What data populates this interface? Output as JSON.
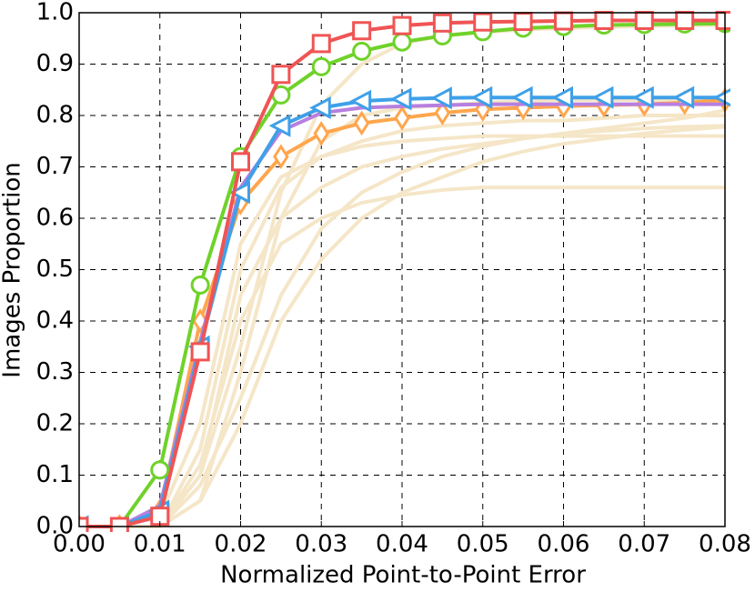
{
  "chart_data": {
    "type": "line",
    "xlabel": "Normalized Point-to-Point Error",
    "ylabel": "Images Proportion",
    "x": [
      0,
      0.005,
      0.01,
      0.015,
      0.02,
      0.025,
      0.03,
      0.035,
      0.04,
      0.045,
      0.05,
      0.055,
      0.06,
      0.065,
      0.07,
      0.075,
      0.08
    ],
    "xlim": [
      0,
      0.08
    ],
    "ylim": [
      0,
      1
    ],
    "xticks": [
      {
        "value": 0,
        "label": "0.00"
      },
      0.01,
      0.02,
      0.03,
      0.04,
      0.05,
      0.06,
      0.07,
      0.08
    ],
    "yticks": [
      {
        "value": 0,
        "label": "0.0"
      },
      0.1,
      0.2,
      0.3,
      0.4,
      0.5,
      0.6,
      0.7,
      0.8,
      0.9,
      {
        "value": 1,
        "label": "1.0"
      }
    ],
    "grid": true,
    "series": [
      {
        "color": "#f5e6c8",
        "values": [
          0,
          0,
          0,
          0.12,
          0.4,
          0.55,
          0.6,
          0.63,
          0.645,
          0.655,
          0.66,
          0.66,
          0.66,
          0.66,
          0.66,
          0.66,
          0.66
        ]
      },
      {
        "color": "#f5e6c8",
        "values": [
          0,
          0,
          0,
          0.1,
          0.35,
          0.65,
          0.82,
          0.9,
          0.94,
          0.955,
          0.962,
          0.967,
          0.97,
          0.972,
          0.974,
          0.975,
          0.976
        ]
      },
      {
        "color": "#f5e6c8",
        "values": [
          0,
          0,
          0,
          0.08,
          0.25,
          0.45,
          0.58,
          0.65,
          0.69,
          0.72,
          0.74,
          0.755,
          0.765,
          0.77,
          0.775,
          0.778,
          0.78
        ]
      },
      {
        "color": "#f5e6c8",
        "values": [
          0,
          0,
          0,
          0.05,
          0.2,
          0.4,
          0.52,
          0.6,
          0.65,
          0.68,
          0.71,
          0.73,
          0.745,
          0.755,
          0.765,
          0.772,
          0.778
        ]
      },
      {
        "color": "#f5e6c8",
        "values": [
          0,
          0,
          0.02,
          0.2,
          0.55,
          0.68,
          0.72,
          0.74,
          0.75,
          0.755,
          0.76,
          0.76,
          0.76,
          0.76,
          0.76,
          0.76,
          0.76
        ]
      },
      {
        "color": "#f5e6c8",
        "values": [
          0,
          0,
          0,
          0.15,
          0.5,
          0.66,
          0.72,
          0.75,
          0.77,
          0.78,
          0.785,
          0.79,
          0.79,
          0.795,
          0.8,
          0.8,
          0.8
        ]
      },
      {
        "color": "#f5e6c8",
        "values": [
          0,
          0,
          0,
          0.1,
          0.45,
          0.6,
          0.66,
          0.7,
          0.72,
          0.735,
          0.745,
          0.755,
          0.765,
          0.775,
          0.785,
          0.795,
          0.81
        ]
      },
      {
        "color": "#f5e6c8",
        "values": [
          0,
          0,
          0,
          0.05,
          0.3,
          0.6,
          0.75,
          0.8,
          0.815,
          0.82,
          0.825,
          0.828,
          0.83,
          0.83,
          0.83,
          0.83,
          0.83
        ]
      },
      {
        "color": "#ffa64d",
        "marker": "diamond",
        "values": [
          0,
          0,
          0.03,
          0.4,
          0.63,
          0.72,
          0.765,
          0.785,
          0.795,
          0.805,
          0.812,
          0.815,
          0.818,
          0.82,
          0.822,
          0.825,
          0.83
        ]
      },
      {
        "color": "#b77fe0",
        "values": [
          0,
          0,
          0.04,
          0.36,
          0.66,
          0.77,
          0.805,
          0.815,
          0.818,
          0.82,
          0.822,
          0.822,
          0.822,
          0.822,
          0.822,
          0.822,
          0.822
        ]
      },
      {
        "color": "#3fa0e8",
        "marker": "triangle-left",
        "values": [
          0,
          0,
          0.03,
          0.35,
          0.65,
          0.78,
          0.815,
          0.828,
          0.832,
          0.834,
          0.835,
          0.835,
          0.835,
          0.835,
          0.835,
          0.835,
          0.835
        ]
      },
      {
        "color": "#6fd22a",
        "marker": "circle",
        "values": [
          0,
          0,
          0.11,
          0.47,
          0.72,
          0.84,
          0.895,
          0.925,
          0.943,
          0.955,
          0.963,
          0.97,
          0.973,
          0.976,
          0.977,
          0.978,
          0.979
        ]
      },
      {
        "color": "#f05454",
        "marker": "square",
        "values": [
          0,
          0,
          0.02,
          0.34,
          0.71,
          0.88,
          0.94,
          0.965,
          0.975,
          0.98,
          0.982,
          0.983,
          0.984,
          0.985,
          0.985,
          0.985,
          0.985
        ]
      }
    ]
  }
}
